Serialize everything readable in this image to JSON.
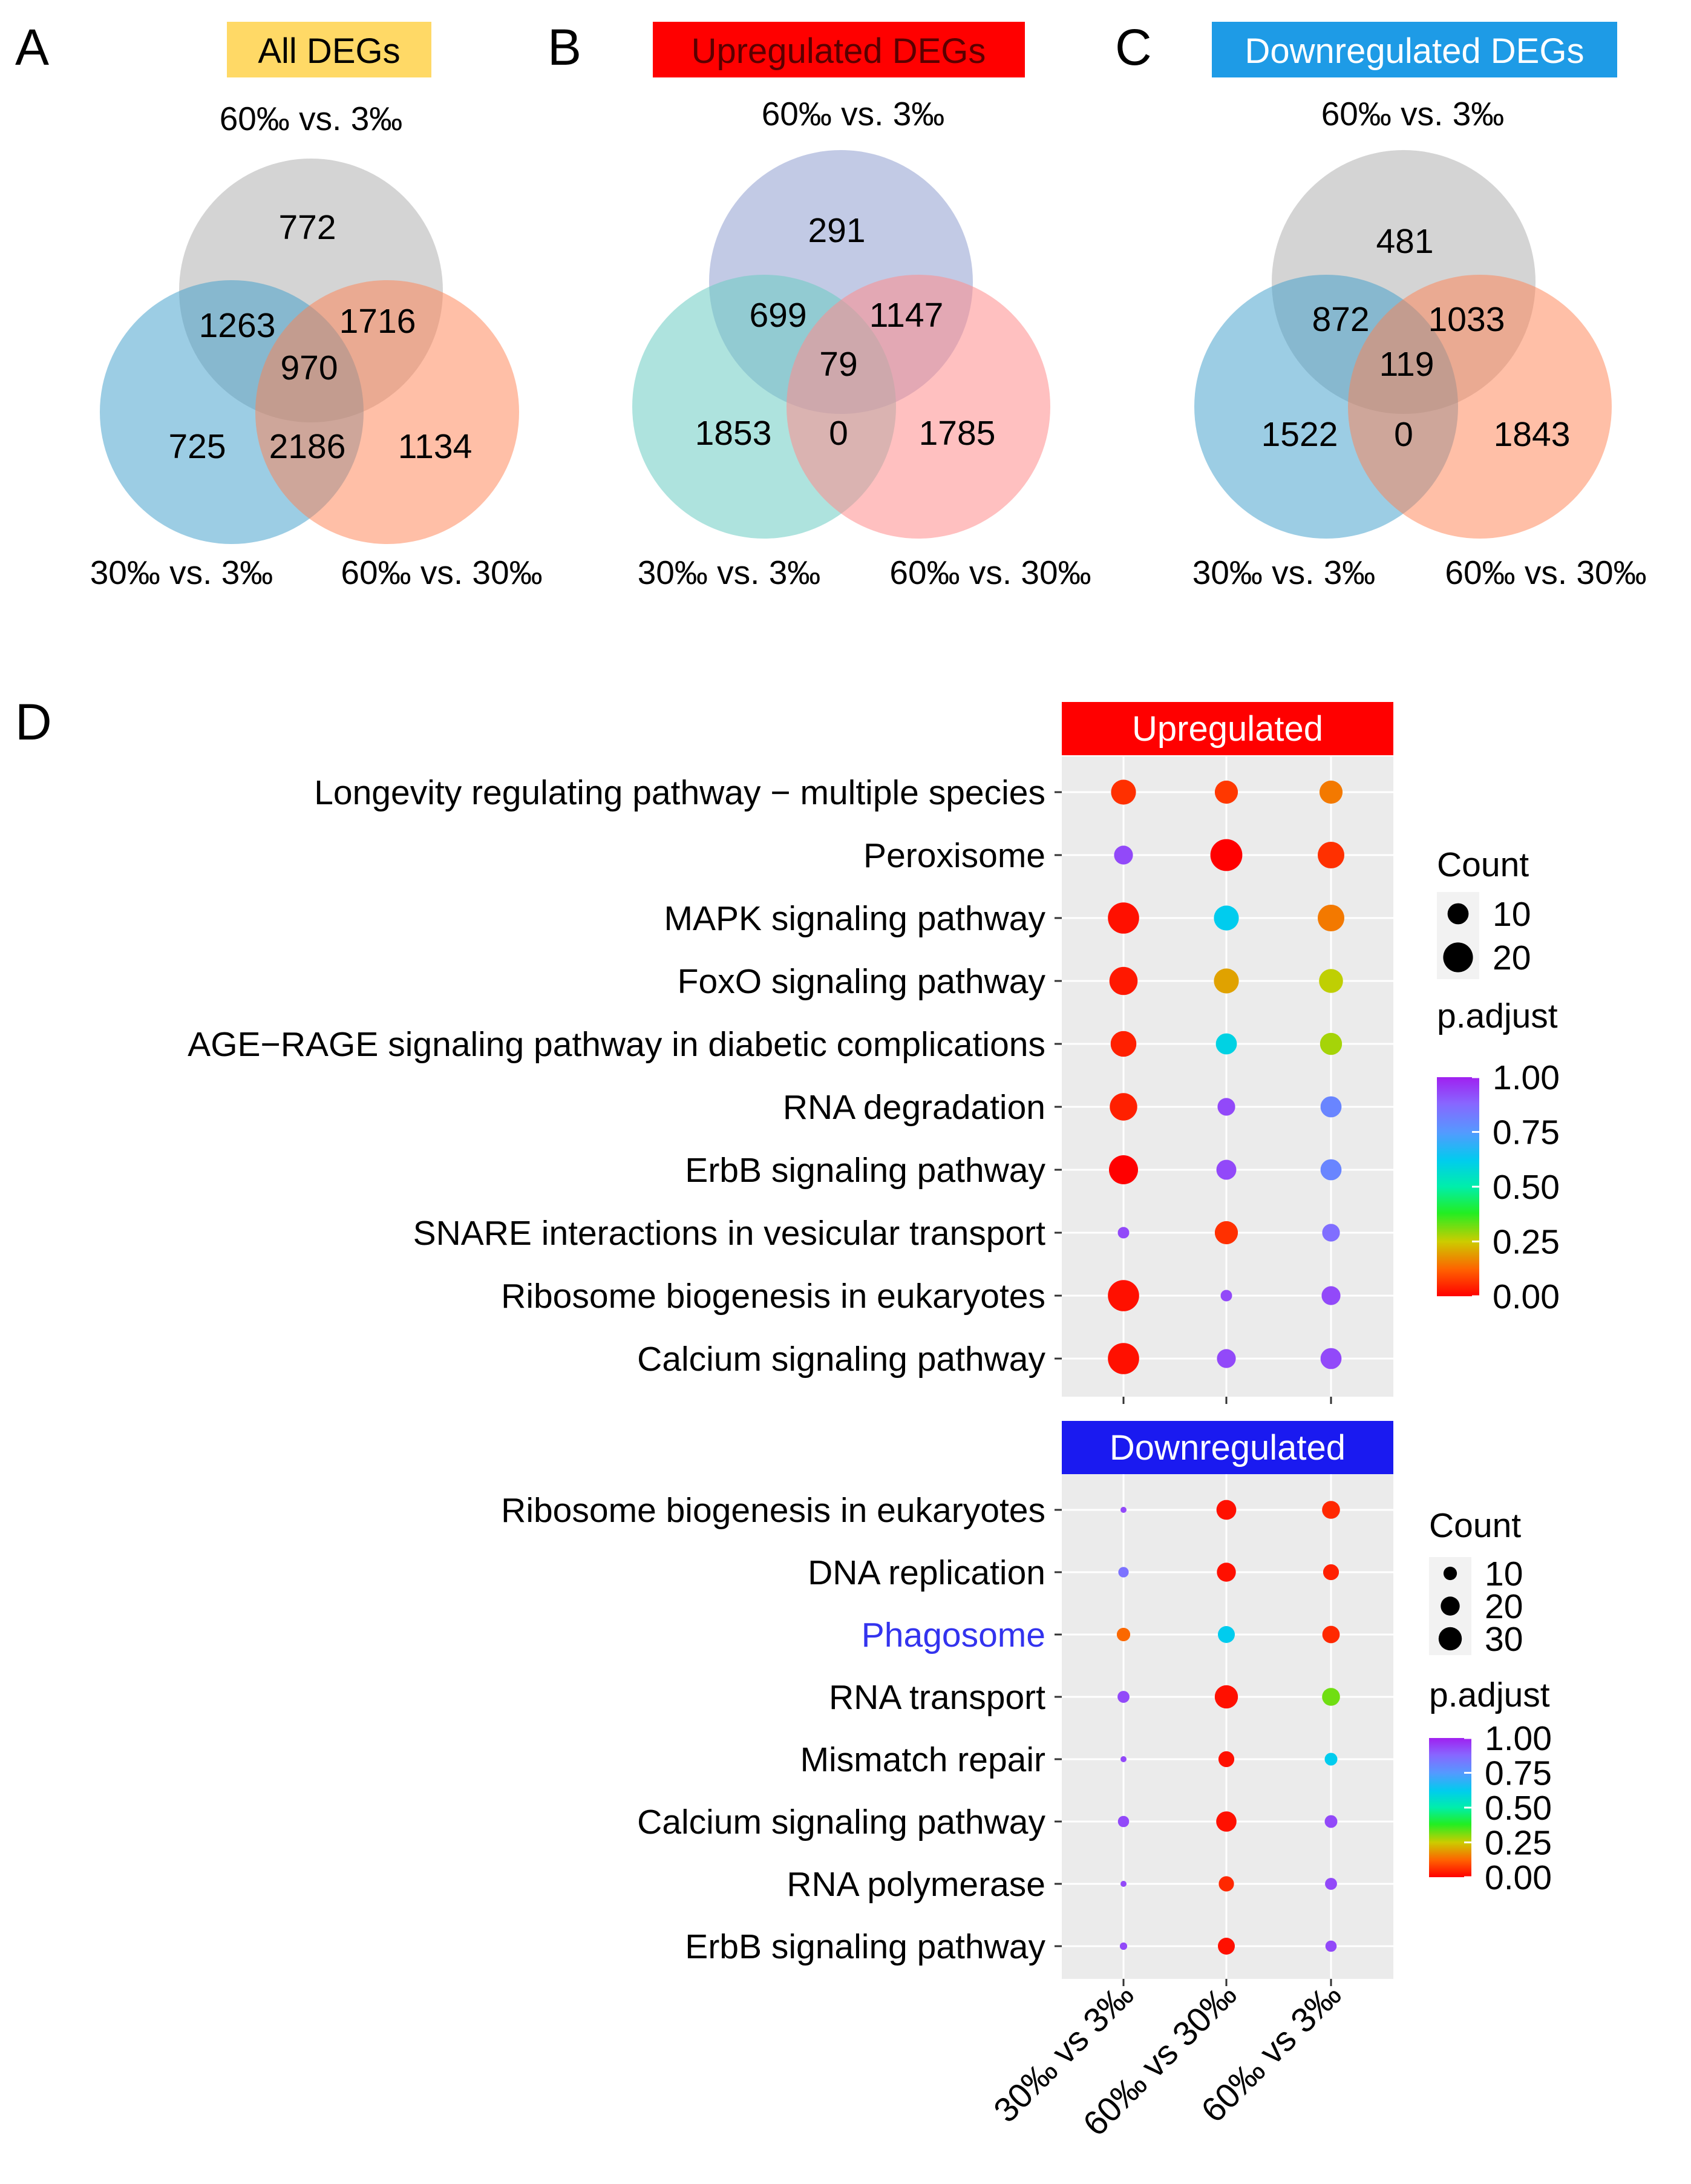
{
  "panels": {
    "A": {
      "letter": "A",
      "title": "All DEGs",
      "title_bg": "#FFD966",
      "title_color": "#000000",
      "top_label": "60‰ vs. 3‰",
      "left_label": "30‰ vs. 3‰",
      "right_label": "60‰ vs. 30‰",
      "colors": {
        "top": "#A9A9A9",
        "left": "#3A9BCA",
        "right": "#FF7F50"
      },
      "values": {
        "top_only": "772",
        "top_left": "1263",
        "top_right": "1716",
        "center": "970",
        "left_only": "725",
        "left_right": "2186",
        "right_only": "1134"
      }
    },
    "B": {
      "letter": "B",
      "title": "Upregulated DEGs",
      "title_bg": "#FF0000",
      "title_color": "#5a0000",
      "top_label": "60‰ vs. 3‰",
      "left_label": "30‰ vs. 3‰",
      "right_label": "60‰ vs. 30‰",
      "colors": {
        "top": "#8F9FD0",
        "left": "#6CCCC2",
        "right": "#FF8C8C"
      },
      "values": {
        "top_only": "291",
        "top_left": "699",
        "top_right": "1147",
        "center": "79",
        "left_only": "1853",
        "left_right": "0",
        "right_only": "1785"
      }
    },
    "C": {
      "letter": "C",
      "title": "Downregulated DEGs",
      "title_bg": "#1E9BE6",
      "title_color": "#ffffff",
      "top_label": "60‰ vs. 3‰",
      "left_label": "30‰ vs. 3‰",
      "right_label": "60‰ vs. 30‰",
      "colors": {
        "top": "#A9A9A9",
        "left": "#3A9BCA",
        "right": "#FF7F50"
      },
      "values": {
        "top_only": "481",
        "top_left": "872",
        "top_right": "1033",
        "center": "119",
        "left_only": "1522",
        "left_right": "0",
        "right_only": "1843"
      }
    },
    "D": {
      "letter": "D"
    }
  },
  "chart_data": [
    {
      "type": "scatter",
      "title": "Upregulated",
      "strip_color": "#FF0000",
      "x_categories": [
        "30‰ vs 3‰",
        "60‰ vs 30‰",
        "60‰ vs 3‰"
      ],
      "terms": [
        "Longevity regulating pathway − multiple species",
        "Peroxisome",
        "MAPK signaling pathway",
        "FoxO signaling pathway",
        "AGE−RAGE signaling pathway in diabetic complications",
        "RNA degradation",
        "ErbB signaling pathway",
        "SNARE interactions in vesicular transport",
        "Ribosome biogenesis in eukaryotes",
        "Calcium signaling pathway"
      ],
      "counts": [
        [
          14,
          12,
          12
        ],
        [
          8,
          23,
          16
        ],
        [
          22,
          14,
          16
        ],
        [
          18,
          14,
          13
        ],
        [
          15,
          10,
          11
        ],
        [
          17,
          7,
          10
        ],
        [
          19,
          9,
          10
        ],
        [
          3,
          12,
          7
        ],
        [
          22,
          3,
          8
        ],
        [
          22,
          8,
          10
        ]
      ],
      "padj": [
        [
          0.06,
          0.07,
          0.15
        ],
        [
          0.93,
          0.0,
          0.06
        ],
        [
          0.02,
          0.62,
          0.15
        ],
        [
          0.03,
          0.2,
          0.26
        ],
        [
          0.04,
          0.6,
          0.28
        ],
        [
          0.04,
          0.93,
          0.8
        ],
        [
          0.0,
          0.93,
          0.8
        ],
        [
          0.93,
          0.06,
          0.86
        ],
        [
          0.02,
          0.93,
          0.93
        ],
        [
          0.02,
          0.93,
          0.93
        ]
      ],
      "legend_count_title": "Count",
      "legend_count_labels": [
        "10",
        "20"
      ],
      "legend_color_title": "p.adjust",
      "legend_color_ticks": [
        "1.00",
        "0.75",
        "0.50",
        "0.25",
        "0.00"
      ]
    },
    {
      "type": "scatter",
      "title": "Downregulated",
      "strip_color": "#1A1AF0",
      "x_categories": [
        "30‰ vs 3‰",
        "60‰ vs 30‰",
        "60‰ vs 3‰"
      ],
      "terms": [
        "Ribosome biogenesis in eukaryotes",
        "DNA replication",
        "Phagosome",
        "RNA transport",
        "Mismatch repair",
        "Calcium signaling pathway",
        "RNA polymerase",
        "ErbB signaling pathway"
      ],
      "highlight_term": "Phagosome",
      "highlight_color": "#3333EE",
      "counts": [
        [
          2,
          22,
          18
        ],
        [
          6,
          20,
          14
        ],
        [
          10,
          16,
          17
        ],
        [
          8,
          30,
          18
        ],
        [
          2,
          14,
          9
        ],
        [
          7,
          23,
          9
        ],
        [
          2,
          13,
          8
        ],
        [
          3,
          16,
          7
        ]
      ],
      "padj": [
        [
          0.93,
          0.02,
          0.05
        ],
        [
          0.85,
          0.02,
          0.04
        ],
        [
          0.13,
          0.62,
          0.05
        ],
        [
          0.93,
          0.02,
          0.32
        ],
        [
          0.93,
          0.02,
          0.62
        ],
        [
          0.93,
          0.02,
          0.93
        ],
        [
          0.93,
          0.05,
          0.93
        ],
        [
          0.93,
          0.02,
          0.93
        ]
      ],
      "legend_count_title": "Count",
      "legend_count_labels": [
        "10",
        "20",
        "30"
      ],
      "legend_color_title": "p.adjust",
      "legend_color_ticks": [
        "1.00",
        "0.75",
        "0.50",
        "0.25",
        "0.00"
      ]
    }
  ]
}
